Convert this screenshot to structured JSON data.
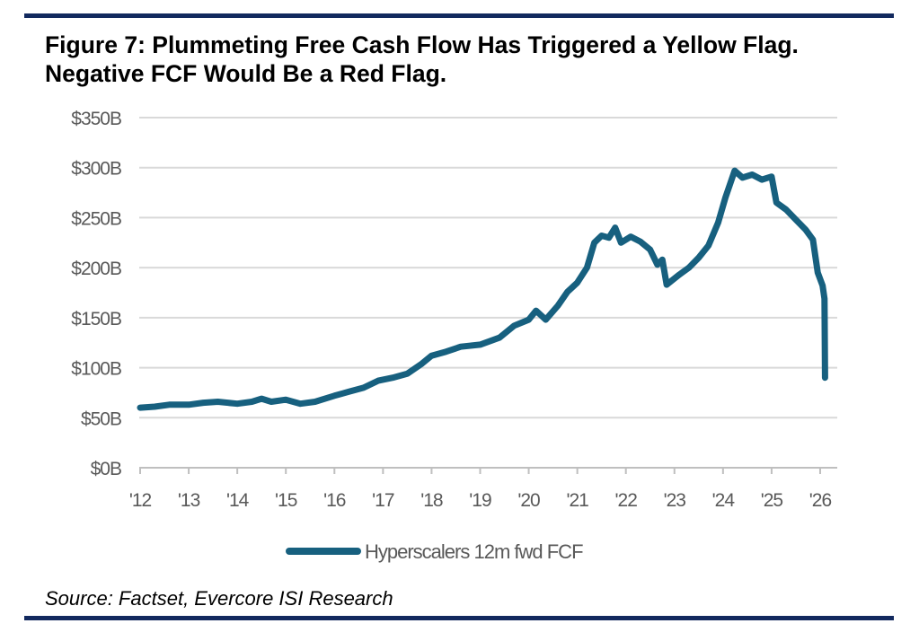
{
  "title": "Figure 7: Plummeting Free Cash Flow Has Triggered a Yellow Flag. Negative FCF Would Be a Red Flag.",
  "source": "Source: Factset, Evercore ISI Research",
  "colors": {
    "series": "#17607f",
    "rule": "#12295e",
    "grid": "#d9d9d9",
    "tick_text": "#595959"
  },
  "chart_data": {
    "type": "line",
    "title": "Figure 7: Plummeting Free Cash Flow Has Triggered a Yellow Flag. Negative FCF Would Be a Red Flag.",
    "xlabel": "",
    "ylabel": "",
    "xlim": [
      2012,
      2026.3
    ],
    "ylim": [
      0,
      350
    ],
    "grid": "horizontal",
    "legend_placement": "bottom",
    "y_ticks": [
      0,
      50,
      100,
      150,
      200,
      250,
      300,
      350
    ],
    "y_tick_labels": [
      "$0B",
      "$50B",
      "$100B",
      "$150B",
      "$200B",
      "$250B",
      "$300B",
      "$350B"
    ],
    "x_ticks": [
      2012,
      2013,
      2014,
      2015,
      2016,
      2017,
      2018,
      2019,
      2020,
      2021,
      2022,
      2023,
      2024,
      2025,
      2026
    ],
    "x_tick_labels": [
      "'12",
      "'13",
      "'14",
      "'15",
      "'16",
      "'17",
      "'18",
      "'19",
      "'20",
      "'21",
      "'22",
      "'23",
      "'24",
      "'25",
      "'26"
    ],
    "series": [
      {
        "name": "Hyperscalers 12m fwd FCF",
        "x": [
          2012.0,
          2012.3,
          2012.6,
          2013.0,
          2013.3,
          2013.6,
          2014.0,
          2014.3,
          2014.5,
          2014.7,
          2015.0,
          2015.3,
          2015.6,
          2016.0,
          2016.3,
          2016.6,
          2016.9,
          2017.2,
          2017.5,
          2017.8,
          2018.0,
          2018.3,
          2018.6,
          2019.0,
          2019.4,
          2019.7,
          2020.0,
          2020.15,
          2020.35,
          2020.6,
          2020.8,
          2021.0,
          2021.2,
          2021.35,
          2021.5,
          2021.65,
          2021.78,
          2021.9,
          2022.1,
          2022.3,
          2022.5,
          2022.65,
          2022.75,
          2022.84,
          2023.1,
          2023.3,
          2023.5,
          2023.7,
          2023.9,
          2024.05,
          2024.24,
          2024.4,
          2024.6,
          2024.8,
          2025.0,
          2025.1,
          2025.3,
          2025.5,
          2025.7,
          2025.85,
          2025.95,
          2026.05,
          2026.09,
          2026.1
        ],
        "y": [
          60,
          61,
          63,
          63,
          65,
          66,
          64,
          66,
          69,
          66,
          68,
          64,
          66,
          72,
          76,
          80,
          87,
          90,
          94,
          104,
          112,
          116,
          121,
          123,
          130,
          142,
          148,
          157,
          148,
          162,
          176,
          185,
          200,
          225,
          232,
          230,
          240,
          225,
          231,
          226,
          218,
          203,
          208,
          183,
          193,
          200,
          210,
          222,
          245,
          270,
          297,
          290,
          293,
          288,
          291,
          265,
          258,
          248,
          238,
          228,
          195,
          182,
          169,
          90
        ]
      }
    ]
  }
}
